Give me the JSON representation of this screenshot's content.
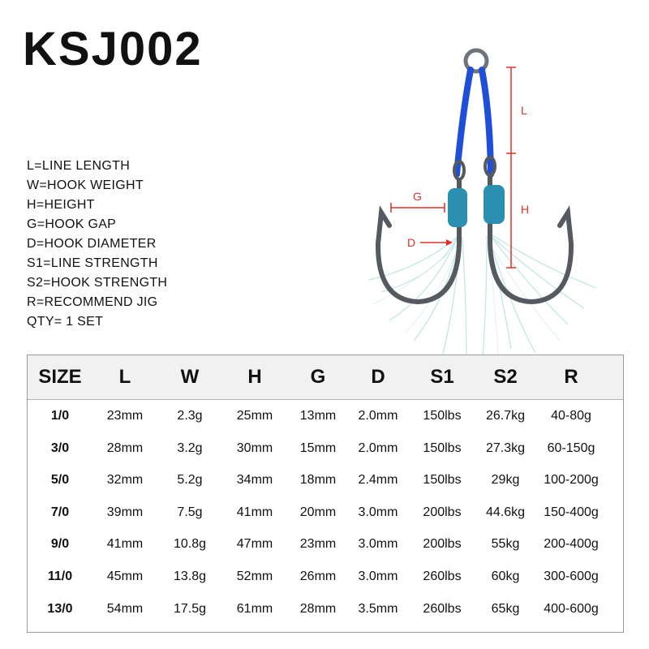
{
  "title": "KSJ002",
  "legend": [
    "L=LINE LENGTH",
    "W=HOOK WEIGHT",
    "H=HEIGHT",
    "G=HOOK GAP",
    "D=HOOK DIAMETER",
    "S1=LINE STRENGTH",
    "S2=HOOK STRENGTH",
    "R=RECOMMEND JIG",
    "QTY= 1 SET"
  ],
  "diagram_labels": {
    "L": "L",
    "H": "H",
    "G": "G",
    "D": "D"
  },
  "colors": {
    "dimension_lines": "#e0302a",
    "cord": "#1e4fd8",
    "collar": "#2a8fb0",
    "hook_steel": "#555a60"
  },
  "table": {
    "headers": [
      "SIZE",
      "L",
      "W",
      "H",
      "G",
      "D",
      "S1",
      "S2",
      "R"
    ],
    "rows": [
      [
        "1/0",
        "23mm",
        "2.3g",
        "25mm",
        "13mm",
        "2.0mm",
        "150lbs",
        "26.7kg",
        "40-80g"
      ],
      [
        "3/0",
        "28mm",
        "3.2g",
        "30mm",
        "15mm",
        "2.0mm",
        "150lbs",
        "27.3kg",
        "60-150g"
      ],
      [
        "5/0",
        "32mm",
        "5.2g",
        "34mm",
        "18mm",
        "2.4mm",
        "150lbs",
        "29kg",
        "100-200g"
      ],
      [
        "7/0",
        "39mm",
        "7.5g",
        "41mm",
        "20mm",
        "3.0mm",
        "200lbs",
        "44.6kg",
        "150-400g"
      ],
      [
        "9/0",
        "41mm",
        "10.8g",
        "47mm",
        "23mm",
        "3.0mm",
        "200lbs",
        "55kg",
        "200-400g"
      ],
      [
        "11/0",
        "45mm",
        "13.8g",
        "52mm",
        "26mm",
        "3.0mm",
        "260lbs",
        "60kg",
        "300-600g"
      ],
      [
        "13/0",
        "54mm",
        "17.5g",
        "61mm",
        "28mm",
        "3.5mm",
        "260lbs",
        "65kg",
        "400-600g"
      ]
    ]
  }
}
